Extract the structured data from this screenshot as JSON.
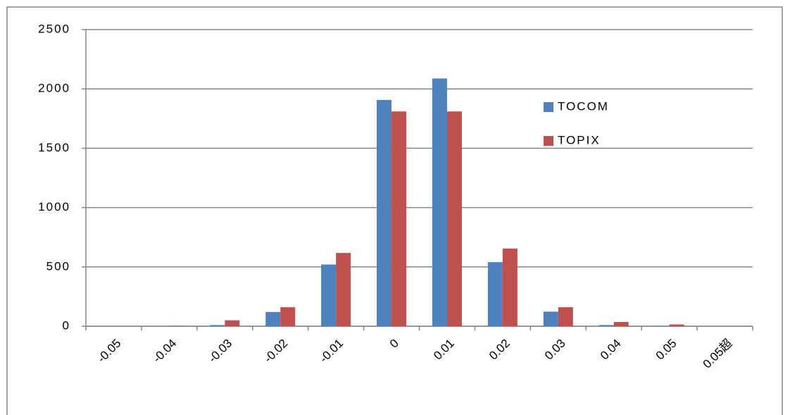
{
  "chart_data": {
    "type": "bar",
    "categories": [
      "-0.05",
      "-0.04",
      "-0.03",
      "-0.02",
      "-0.01",
      "0",
      "0.01",
      "0.02",
      "0.03",
      "0.04",
      "0.05",
      "0.05超"
    ],
    "series": [
      {
        "name": "TOCOM",
        "color": "#4f81bd",
        "values": [
          0,
          0,
          10,
          120,
          520,
          1907,
          2088,
          540,
          123,
          10,
          3,
          0
        ]
      },
      {
        "name": "TOPIX",
        "color": "#c0504d",
        "values": [
          0,
          2,
          50,
          160,
          618,
          1810,
          1810,
          655,
          160,
          36,
          15,
          0
        ]
      }
    ],
    "ylim": [
      0,
      2500
    ],
    "yticks": [
      0,
      500,
      1000,
      1500,
      2000,
      2500
    ],
    "grid": true,
    "legend": "right"
  }
}
